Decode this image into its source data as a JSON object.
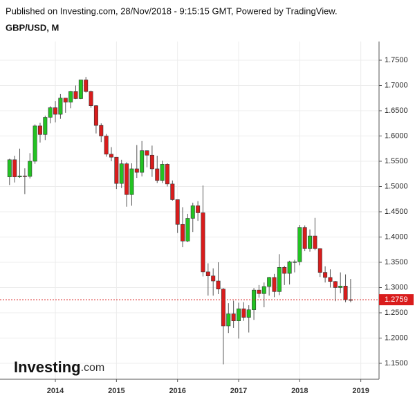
{
  "header": {
    "published": "Published on Investing.com, 28/Nov/2018 - 9:15:15 GMT, Powered by TradingView.",
    "symbol": "GBP/USD, M"
  },
  "logo": {
    "main": "Investing",
    "suffix": ".com"
  },
  "chart_data": {
    "type": "candlestick",
    "categories": [
      null,
      null,
      null,
      null,
      null,
      null,
      null,
      null,
      null,
      "2014",
      null,
      null,
      null,
      null,
      null,
      null,
      null,
      null,
      null,
      null,
      null,
      "2015",
      null,
      null,
      null,
      null,
      null,
      null,
      null,
      null,
      null,
      null,
      null,
      "2016",
      null,
      null,
      null,
      null,
      null,
      null,
      null,
      null,
      null,
      null,
      null,
      "2017",
      null,
      null,
      null,
      null,
      null,
      null,
      null,
      null,
      null,
      null,
      null,
      "2018",
      null,
      null,
      null,
      null,
      null,
      null,
      null,
      null,
      null,
      null,
      null,
      "2019"
    ],
    "open": [
      1.519,
      1.553,
      1.519,
      1.521,
      1.52,
      1.55,
      1.62,
      1.603,
      1.637,
      1.656,
      1.643,
      1.675,
      1.667,
      1.688,
      1.674,
      1.711,
      1.688,
      1.66,
      1.621,
      1.6,
      1.564,
      1.558,
      1.506,
      1.545,
      1.484,
      1.535,
      1.528,
      1.571,
      1.562,
      1.535,
      1.512,
      1.544,
      1.505,
      1.474,
      1.425,
      1.392,
      1.437,
      1.462,
      1.448,
      1.331,
      1.323,
      1.313,
      1.297,
      1.224,
      1.248,
      1.234,
      1.258,
      1.241,
      1.256,
      1.295,
      1.288,
      1.302,
      1.32,
      1.292,
      1.34,
      1.328,
      1.351,
      1.351,
      1.419,
      1.377,
      1.402,
      1.377,
      1.33,
      1.32,
      1.312,
      1.3,
      1.303,
      1.276,
      null,
      null
    ],
    "high": [
      1.555,
      1.561,
      1.575,
      1.536,
      1.566,
      1.623,
      1.626,
      1.64,
      1.659,
      1.669,
      1.683,
      1.671,
      1.689,
      1.7,
      1.711,
      1.717,
      1.69,
      1.661,
      1.625,
      1.604,
      1.578,
      1.558,
      1.553,
      1.548,
      1.546,
      1.582,
      1.59,
      1.567,
      1.581,
      1.561,
      1.551,
      1.546,
      1.512,
      1.474,
      1.459,
      1.446,
      1.468,
      1.471,
      1.502,
      1.348,
      1.338,
      1.35,
      1.299,
      1.269,
      1.274,
      1.27,
      1.271,
      1.265,
      1.299,
      1.305,
      1.31,
      1.321,
      1.327,
      1.366,
      1.343,
      1.353,
      1.355,
      1.424,
      1.423,
      1.415,
      1.438,
      1.378,
      1.342,
      1.336,
      1.313,
      1.33,
      1.326,
      1.317,
      null,
      null
    ],
    "low": [
      1.503,
      1.508,
      1.517,
      1.485,
      1.516,
      1.545,
      1.587,
      1.592,
      1.625,
      1.627,
      1.634,
      1.646,
      1.655,
      1.673,
      1.673,
      1.686,
      1.656,
      1.605,
      1.588,
      1.559,
      1.55,
      1.495,
      1.497,
      1.46,
      1.462,
      1.517,
      1.52,
      1.538,
      1.519,
      1.507,
      1.507,
      1.5,
      1.472,
      1.408,
      1.38,
      1.39,
      1.41,
      1.432,
      1.322,
      1.284,
      1.284,
      1.287,
      1.148,
      1.21,
      1.22,
      1.199,
      1.234,
      1.211,
      1.236,
      1.28,
      1.261,
      1.284,
      1.281,
      1.285,
      1.305,
      1.306,
      1.33,
      1.344,
      1.372,
      1.371,
      1.374,
      1.321,
      1.31,
      1.3,
      1.273,
      1.289,
      1.271,
      1.271,
      null,
      null
    ],
    "close": [
      1.553,
      1.519,
      1.521,
      1.52,
      1.55,
      1.62,
      1.603,
      1.637,
      1.656,
      1.643,
      1.675,
      1.667,
      1.688,
      1.674,
      1.711,
      1.688,
      1.66,
      1.621,
      1.6,
      1.564,
      1.558,
      1.506,
      1.545,
      1.484,
      1.535,
      1.528,
      1.571,
      1.562,
      1.535,
      1.512,
      1.544,
      1.505,
      1.474,
      1.425,
      1.392,
      1.437,
      1.462,
      1.448,
      1.331,
      1.323,
      1.313,
      1.297,
      1.224,
      1.248,
      1.234,
      1.258,
      1.241,
      1.256,
      1.295,
      1.288,
      1.302,
      1.32,
      1.292,
      1.34,
      1.328,
      1.351,
      1.351,
      1.419,
      1.377,
      1.402,
      1.377,
      1.33,
      1.32,
      1.312,
      1.3,
      1.303,
      1.276,
      1.2759,
      null,
      null
    ],
    "up_color": "#22c322",
    "down_color": "#d91c1c",
    "last_price": 1.2759,
    "last_price_color": "#d91c1c",
    "ylim": [
      1.1185,
      1.787
    ],
    "yticks": [
      {
        "value": 1.15,
        "label": "1.1500"
      },
      {
        "value": 1.2,
        "label": "1.2000"
      },
      {
        "value": 1.25,
        "label": "1.2500"
      },
      {
        "value": 1.3,
        "label": "1.3000"
      },
      {
        "value": 1.35,
        "label": "1.3500"
      },
      {
        "value": 1.4,
        "label": "1.4000"
      },
      {
        "value": 1.45,
        "label": "1.4500"
      },
      {
        "value": 1.5,
        "label": "1.5000"
      },
      {
        "value": 1.55,
        "label": "1.5500"
      },
      {
        "value": 1.6,
        "label": "1.6000"
      },
      {
        "value": 1.65,
        "label": "1.6500"
      },
      {
        "value": 1.7,
        "label": "1.7000"
      },
      {
        "value": 1.75,
        "label": "1.7500"
      }
    ],
    "grid": true
  }
}
